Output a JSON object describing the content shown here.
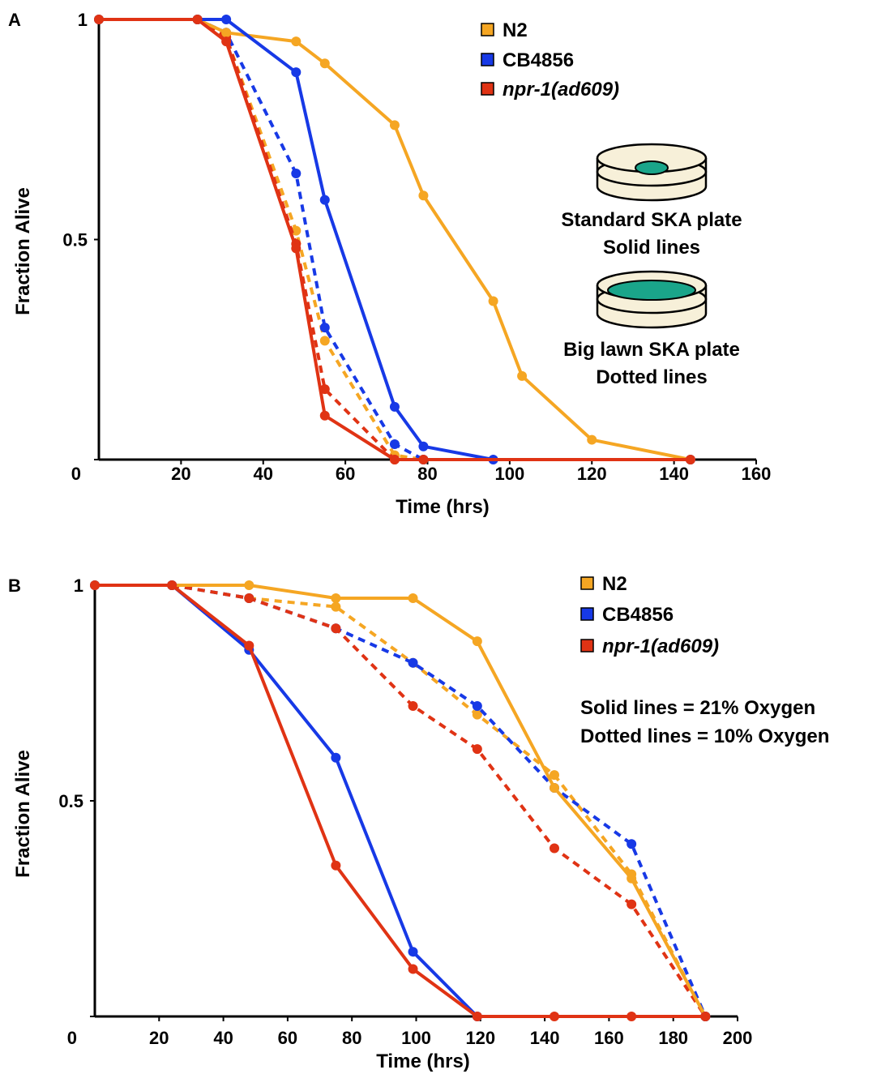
{
  "colors": {
    "N2": "#f5a623",
    "CB4856": "#1739e6",
    "npr1": "#e03314",
    "dish_fill": "#f7f0d9",
    "lawn": "#1aa58a"
  },
  "chart_data": [
    {
      "panel": "A",
      "type": "line",
      "xlabel": "Time (hrs)",
      "ylabel": "Fraction Alive",
      "xlim": [
        0,
        160
      ],
      "ylim": [
        0,
        1
      ],
      "x_ticks": [
        "20",
        "40",
        "60",
        "80",
        "100",
        "120",
        "140",
        "160"
      ],
      "x_tick_values": [
        20,
        40,
        60,
        80,
        100,
        120,
        140,
        160
      ],
      "y_ticks": [
        "0",
        "0.5",
        "1"
      ],
      "y_tick_values": [
        0,
        0.5,
        1
      ],
      "legend": [
        {
          "name": "N2",
          "color_key": "N2",
          "italic": false
        },
        {
          "name": "CB4856",
          "color_key": "CB4856",
          "italic": false
        },
        {
          "name": "npr-1(ad609)",
          "color_key": "npr1",
          "italic": true
        }
      ],
      "notes": [
        "Standard SKA plate",
        "Solid lines",
        "Big lawn SKA plate",
        "Dotted lines"
      ],
      "series": [
        {
          "strain": "N2",
          "color_key": "N2",
          "style": "solid",
          "x": [
            0,
            24,
            31,
            48,
            55,
            72,
            79,
            96,
            103,
            120,
            144
          ],
          "y": [
            1,
            1,
            0.97,
            0.95,
            0.9,
            0.76,
            0.6,
            0.36,
            0.19,
            0.045,
            0
          ]
        },
        {
          "strain": "CB4856",
          "color_key": "CB4856",
          "style": "solid",
          "x": [
            0,
            24,
            31,
            48,
            55,
            72,
            79,
            96,
            144
          ],
          "y": [
            1,
            1,
            1,
            0.88,
            0.59,
            0.12,
            0.03,
            0,
            0
          ]
        },
        {
          "strain": "npr-1(ad609)",
          "color_key": "npr1",
          "style": "solid",
          "x": [
            0,
            24,
            31,
            48,
            55,
            72,
            144
          ],
          "y": [
            1,
            1,
            0.95,
            0.48,
            0.1,
            0,
            0
          ]
        },
        {
          "strain": "N2",
          "color_key": "N2",
          "style": "dotted",
          "x": [
            24,
            31,
            48,
            55,
            72,
            79
          ],
          "y": [
            1,
            0.96,
            0.52,
            0.27,
            0.01,
            0
          ]
        },
        {
          "strain": "CB4856",
          "color_key": "CB4856",
          "style": "dotted",
          "x": [
            24,
            31,
            48,
            55,
            72,
            79
          ],
          "y": [
            1,
            0.97,
            0.65,
            0.3,
            0.035,
            0
          ]
        },
        {
          "strain": "npr-1(ad609)",
          "color_key": "npr1",
          "style": "dotted",
          "x": [
            24,
            31,
            48,
            55,
            72,
            79
          ],
          "y": [
            1,
            0.96,
            0.49,
            0.16,
            0,
            0
          ]
        }
      ]
    },
    {
      "panel": "B",
      "type": "line",
      "xlabel": "Time (hrs)",
      "ylabel": "Fraction Alive",
      "xlim": [
        0,
        200
      ],
      "ylim": [
        0,
        1
      ],
      "x_ticks": [
        "20",
        "40",
        "60",
        "80",
        "100",
        "120",
        "140",
        "160",
        "180",
        "200"
      ],
      "x_tick_values": [
        20,
        40,
        60,
        80,
        100,
        120,
        140,
        160,
        180,
        200
      ],
      "y_ticks": [
        "0",
        "0.5",
        "1"
      ],
      "y_tick_values": [
        0,
        0.5,
        1
      ],
      "legend": [
        {
          "name": "N2",
          "color_key": "N2",
          "italic": false
        },
        {
          "name": "CB4856",
          "color_key": "CB4856",
          "italic": false
        },
        {
          "name": "npr-1(ad609)",
          "color_key": "npr1",
          "italic": true
        }
      ],
      "notes": [
        "Solid lines = 21% Oxygen",
        "Dotted lines = 10% Oxygen"
      ],
      "series": [
        {
          "strain": "N2",
          "color_key": "N2",
          "style": "solid",
          "x": [
            0,
            24,
            48,
            75,
            99,
            119,
            143,
            167,
            190
          ],
          "y": [
            1,
            1,
            1,
            0.97,
            0.97,
            0.87,
            0.53,
            0.32,
            0
          ]
        },
        {
          "strain": "CB4856",
          "color_key": "CB4856",
          "style": "solid",
          "x": [
            0,
            24,
            48,
            75,
            99,
            119,
            190
          ],
          "y": [
            1,
            1,
            0.85,
            0.6,
            0.15,
            0,
            0
          ]
        },
        {
          "strain": "npr-1(ad609)",
          "color_key": "npr1",
          "style": "solid",
          "x": [
            0,
            24,
            48,
            75,
            99,
            119,
            143,
            167,
            190
          ],
          "y": [
            1,
            1,
            0.86,
            0.35,
            0.11,
            0,
            0,
            0,
            0
          ]
        },
        {
          "strain": "N2",
          "color_key": "N2",
          "style": "dotted",
          "x": [
            24,
            48,
            75,
            99,
            119,
            143,
            167,
            190
          ],
          "y": [
            1,
            0.97,
            0.95,
            0.82,
            0.7,
            0.56,
            0.33,
            0
          ]
        },
        {
          "strain": "CB4856",
          "color_key": "CB4856",
          "style": "dotted",
          "x": [
            24,
            48,
            75,
            99,
            119,
            143,
            167,
            190
          ],
          "y": [
            1,
            0.97,
            0.9,
            0.82,
            0.72,
            0.53,
            0.4,
            0
          ]
        },
        {
          "strain": "npr-1(ad609)",
          "color_key": "npr1",
          "style": "dotted",
          "x": [
            24,
            48,
            75,
            99,
            119,
            143,
            167,
            190
          ],
          "y": [
            1,
            0.97,
            0.9,
            0.72,
            0.62,
            0.39,
            0.26,
            0
          ]
        }
      ]
    }
  ]
}
